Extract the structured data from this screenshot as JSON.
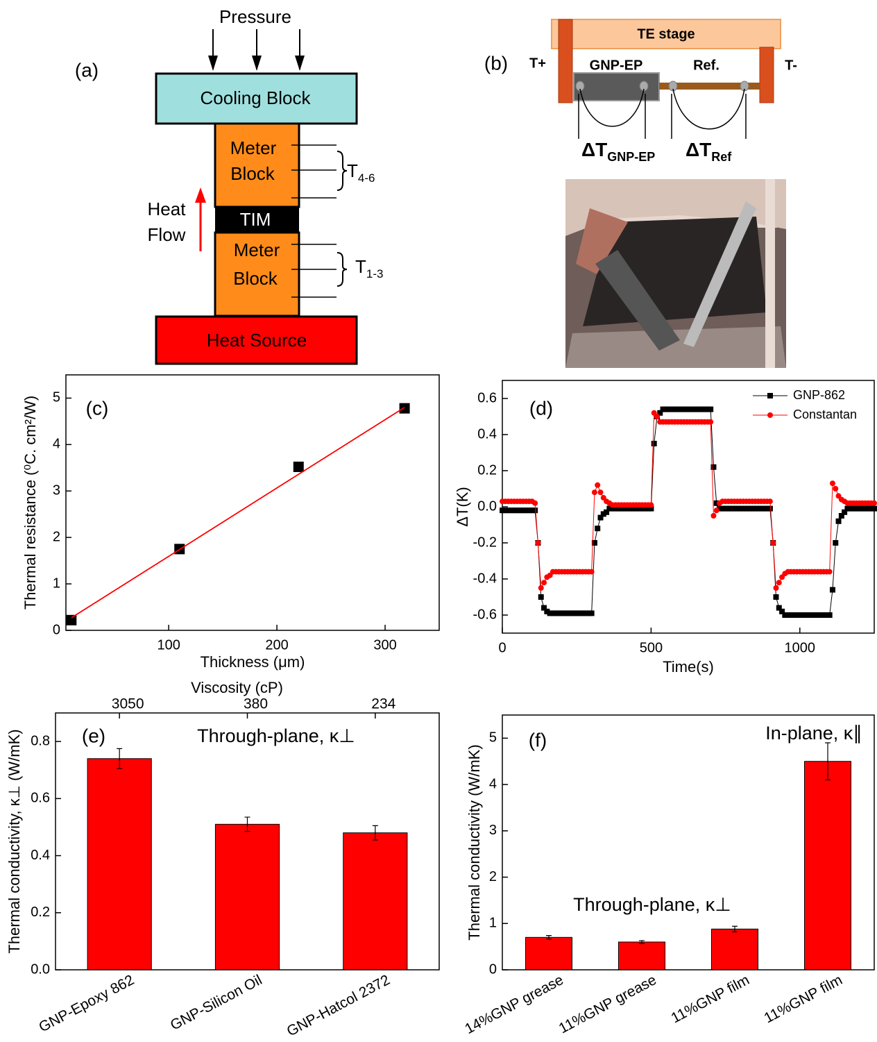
{
  "diagram_a": {
    "label": "(a)",
    "pressure": "Pressure",
    "cooling_block": "Cooling Block",
    "meter_top": [
      "Meter",
      "Block"
    ],
    "tim": "TIM",
    "meter_bottom": [
      "Meter",
      "Block"
    ],
    "heat_source": "Heat Source",
    "heat_flow": [
      "Heat",
      "Flow"
    ],
    "t_top": {
      "symbol": "T",
      "sub": "4-6"
    },
    "t_bottom": {
      "symbol": "T",
      "sub": "1-3"
    }
  },
  "diagram_b": {
    "label": "(b)",
    "stage": "TE stage",
    "t_plus": "T+",
    "t_minus": "T-",
    "sample": "GNP-EP",
    "ref": "Ref.",
    "dt_sample": {
      "symbol": "ΔT",
      "sub": "GNP-EP"
    },
    "dt_ref": {
      "symbol": "ΔT",
      "sub": "Ref"
    }
  },
  "chart_data": [
    {
      "type": "scatter",
      "label": "(c)",
      "xlabel": "Thickness (μm)",
      "ylabel": "Thermal resistance (⁰C. cm²/W)",
      "xlim": [
        5,
        350
      ],
      "xticks": [
        100,
        200,
        300
      ],
      "ylim": [
        0,
        5.5
      ],
      "yticks": [
        0,
        1,
        2,
        3,
        4,
        5
      ],
      "series": [
        {
          "style": "markers",
          "color": "#000000",
          "x": [
            10,
            110,
            220,
            318
          ],
          "values": [
            0.22,
            1.75,
            3.52,
            4.78
          ]
        },
        {
          "style": "line",
          "color": "#ff0000",
          "x": [
            10,
            318
          ],
          "values": [
            0.27,
            4.8
          ]
        }
      ]
    },
    {
      "type": "line",
      "label": "(d)",
      "xlabel": "Time(s)",
      "ylabel": "ΔT(K)",
      "xlim": [
        0,
        1250
      ],
      "xticks": [
        0,
        500,
        1000
      ],
      "ylim": [
        -0.7,
        0.7
      ],
      "yticks": [
        -0.6,
        -0.4,
        -0.2,
        {
          "value": 0,
          "label": "0.0"
        },
        0.2,
        0.4,
        0.6
      ],
      "legend": "upper right",
      "x": [
        0,
        10,
        20,
        30,
        40,
        50,
        60,
        70,
        80,
        90,
        100,
        110,
        120,
        130,
        140,
        150,
        160,
        170,
        180,
        190,
        200,
        210,
        220,
        230,
        240,
        250,
        260,
        270,
        280,
        290,
        300,
        310,
        320,
        330,
        340,
        350,
        360,
        370,
        380,
        390,
        400,
        410,
        420,
        430,
        440,
        450,
        460,
        470,
        480,
        490,
        500,
        510,
        520,
        530,
        540,
        550,
        560,
        570,
        580,
        590,
        600,
        610,
        620,
        630,
        640,
        650,
        660,
        670,
        680,
        690,
        700,
        710,
        720,
        730,
        740,
        750,
        760,
        770,
        780,
        790,
        800,
        810,
        820,
        830,
        840,
        850,
        860,
        870,
        880,
        890,
        900,
        910,
        920,
        930,
        940,
        950,
        960,
        970,
        980,
        990,
        1000,
        1010,
        1020,
        1030,
        1040,
        1050,
        1060,
        1070,
        1080,
        1090,
        1100,
        1110,
        1120,
        1130,
        1140,
        1150,
        1160,
        1170,
        1180,
        1190,
        1200,
        1210,
        1220,
        1230,
        1240,
        1250
      ],
      "series": [
        {
          "name": "GNP-862",
          "color": "#000000",
          "marker": "square",
          "values": [
            -0.02,
            -0.02,
            -0.02,
            -0.02,
            -0.02,
            -0.02,
            -0.02,
            -0.02,
            -0.02,
            -0.02,
            -0.02,
            -0.02,
            -0.2,
            -0.5,
            -0.56,
            -0.58,
            -0.59,
            -0.59,
            -0.59,
            -0.59,
            -0.59,
            -0.59,
            -0.59,
            -0.59,
            -0.59,
            -0.59,
            -0.59,
            -0.59,
            -0.59,
            -0.59,
            -0.59,
            -0.2,
            -0.12,
            -0.06,
            -0.04,
            -0.03,
            -0.01,
            -0.01,
            -0.01,
            -0.01,
            -0.01,
            -0.01,
            -0.01,
            -0.01,
            -0.01,
            -0.01,
            -0.01,
            -0.01,
            -0.01,
            -0.01,
            -0.01,
            0.35,
            0.5,
            0.52,
            0.54,
            0.54,
            0.54,
            0.54,
            0.54,
            0.54,
            0.54,
            0.54,
            0.54,
            0.54,
            0.54,
            0.54,
            0.54,
            0.54,
            0.54,
            0.54,
            0.54,
            0.22,
            0.02,
            -0.01,
            -0.01,
            -0.01,
            -0.01,
            -0.01,
            -0.01,
            -0.01,
            -0.01,
            -0.01,
            -0.01,
            -0.01,
            -0.01,
            -0.01,
            -0.01,
            -0.01,
            -0.01,
            -0.01,
            -0.01,
            -0.2,
            -0.5,
            -0.56,
            -0.58,
            -0.6,
            -0.6,
            -0.6,
            -0.6,
            -0.6,
            -0.6,
            -0.6,
            -0.6,
            -0.6,
            -0.6,
            -0.6,
            -0.6,
            -0.6,
            -0.6,
            -0.6,
            -0.6,
            -0.46,
            -0.2,
            -0.08,
            -0.05,
            -0.03,
            -0.01,
            -0.01,
            -0.01,
            -0.01,
            -0.01,
            -0.01,
            -0.01,
            -0.01,
            -0.01,
            -0.01
          ]
        },
        {
          "name": "Constantan",
          "color": "#ff0000",
          "marker": "circle",
          "values": [
            0.03,
            0.03,
            0.03,
            0.03,
            0.03,
            0.03,
            0.03,
            0.03,
            0.03,
            0.03,
            0.03,
            0.02,
            -0.2,
            -0.45,
            -0.42,
            -0.39,
            -0.38,
            -0.36,
            -0.36,
            -0.36,
            -0.36,
            -0.36,
            -0.36,
            -0.36,
            -0.36,
            -0.36,
            -0.36,
            -0.36,
            -0.36,
            -0.36,
            -0.36,
            0.08,
            0.12,
            0.08,
            0.05,
            0.03,
            0.02,
            0.01,
            0.01,
            0.01,
            0.01,
            0.01,
            0.01,
            0.01,
            0.01,
            0.01,
            0.01,
            0.01,
            0.01,
            0.01,
            0.01,
            0.52,
            0.5,
            0.47,
            0.47,
            0.47,
            0.47,
            0.47,
            0.47,
            0.47,
            0.47,
            0.47,
            0.47,
            0.47,
            0.47,
            0.47,
            0.47,
            0.47,
            0.47,
            0.47,
            0.47,
            -0.05,
            -0.02,
            0.02,
            0.03,
            0.03,
            0.03,
            0.03,
            0.03,
            0.03,
            0.03,
            0.03,
            0.03,
            0.03,
            0.03,
            0.03,
            0.03,
            0.03,
            0.03,
            0.03,
            0.03,
            -0.2,
            -0.45,
            -0.42,
            -0.39,
            -0.37,
            -0.36,
            -0.36,
            -0.36,
            -0.36,
            -0.36,
            -0.36,
            -0.36,
            -0.36,
            -0.36,
            -0.36,
            -0.36,
            -0.36,
            -0.36,
            -0.36,
            -0.36,
            0.13,
            0.1,
            0.06,
            0.04,
            0.03,
            0.02,
            0.02,
            0.02,
            0.02,
            0.02,
            0.02,
            0.02,
            0.02,
            0.02,
            0.02
          ]
        }
      ]
    },
    {
      "type": "bar",
      "label": "(e)",
      "annotations": [
        "Through-plane, κ⊥"
      ],
      "ylabel": "Thermal conductivity, κ⊥ (W/mK)",
      "x2label": "Viscosity (cP)",
      "categories": [
        "GNP-Epoxy 862",
        "GNP-Silicon Oil",
        "GNP-Hatcol 2372"
      ],
      "top_categories": [
        "3050",
        "380",
        "234"
      ],
      "values": [
        0.74,
        0.51,
        0.48
      ],
      "errors": [
        0.035,
        0.025,
        0.025
      ],
      "color": "#ff0000",
      "ylim": [
        0,
        0.9
      ],
      "yticks": [
        {
          "value": 0,
          "label": "0.0"
        },
        0.2,
        0.4,
        0.6,
        0.8
      ]
    },
    {
      "type": "bar",
      "label": "(f)",
      "annotations": [
        "In-plane, κ∥",
        "Through-plane, κ⊥"
      ],
      "ylabel": "Thermal conductivity (W/mK)",
      "categories": [
        "14%GNP grease",
        "11%GNP grease",
        "11%GNP film",
        "11%GNP film"
      ],
      "values": [
        0.7,
        0.6,
        0.88,
        4.5
      ],
      "errors": [
        0.04,
        0.03,
        0.06,
        0.4
      ],
      "color": "#ff0000",
      "ylim": [
        0,
        5.5
      ],
      "yticks": [
        0,
        1,
        2,
        3,
        4,
        5
      ]
    }
  ]
}
